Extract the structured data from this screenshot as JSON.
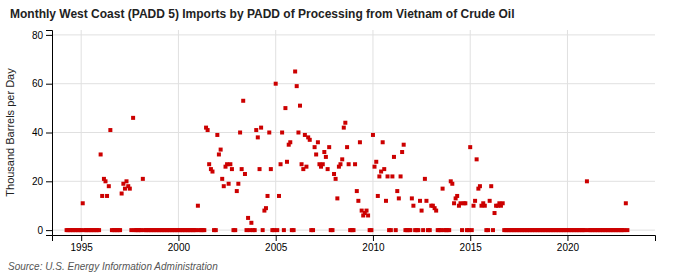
{
  "chart_data": {
    "type": "scatter",
    "title": "Monthly West Coast (PADD 5) Imports by PADD of Processing from Vietnam of Crude Oil",
    "y_label": "Thousand Barrels per Day",
    "annotations": [
      "Source: U.S. Energy Information Administration"
    ],
    "color": "#cc0000",
    "marker": "square",
    "grid": true,
    "xlim": [
      1993.5,
      2024.5
    ],
    "ylim": [
      -2,
      82
    ],
    "xticks": [
      1995,
      2000,
      2005,
      2010,
      2015,
      2020
    ],
    "yticks": [
      0,
      20,
      40,
      60,
      80
    ],
    "x": [
      1994.25,
      1994.33,
      1994.42,
      1994.5,
      1994.58,
      1994.67,
      1994.75,
      1994.83,
      1994.92,
      1995.0,
      1995.08,
      1995.17,
      1995.25,
      1995.33,
      1995.42,
      1995.5,
      1995.58,
      1995.67,
      1995.75,
      1995.83,
      1995.92,
      1996.0,
      1996.08,
      1996.17,
      1996.25,
      1996.33,
      1996.42,
      1996.5,
      1996.58,
      1996.67,
      1996.75,
      1996.83,
      1996.92,
      1997.0,
      1997.08,
      1997.17,
      1997.25,
      1997.33,
      1997.42,
      1997.5,
      1997.58,
      1997.67,
      1997.75,
      1997.83,
      1997.92,
      1998.0,
      1998.08,
      1998.17,
      1998.25,
      1998.33,
      1998.42,
      1998.5,
      1998.58,
      1998.67,
      1998.75,
      1998.83,
      1998.92,
      1999.0,
      1999.08,
      1999.17,
      1999.25,
      1999.33,
      1999.42,
      1999.5,
      1999.58,
      1999.67,
      1999.75,
      1999.83,
      1999.92,
      2000.0,
      2000.08,
      2000.17,
      2000.25,
      2000.33,
      2000.42,
      2000.5,
      2000.58,
      2000.67,
      2000.75,
      2000.83,
      2000.92,
      2001.0,
      2001.08,
      2001.17,
      2001.25,
      2001.33,
      2001.42,
      2001.5,
      2001.58,
      2001.67,
      2001.75,
      2001.83,
      2001.92,
      2002.0,
      2002.08,
      2002.17,
      2002.25,
      2002.33,
      2002.42,
      2002.5,
      2002.58,
      2002.67,
      2002.75,
      2002.83,
      2002.92,
      2003.0,
      2003.08,
      2003.17,
      2003.25,
      2003.33,
      2003.42,
      2003.5,
      2003.58,
      2003.67,
      2003.75,
      2003.83,
      2003.92,
      2004.0,
      2004.08,
      2004.17,
      2004.25,
      2004.33,
      2004.42,
      2004.5,
      2004.58,
      2004.67,
      2004.75,
      2004.83,
      2004.92,
      2005.0,
      2005.08,
      2005.17,
      2005.25,
      2005.33,
      2005.42,
      2005.5,
      2005.58,
      2005.67,
      2005.75,
      2005.83,
      2005.92,
      2006.0,
      2006.08,
      2006.17,
      2006.25,
      2006.33,
      2006.42,
      2006.5,
      2006.58,
      2006.67,
      2006.75,
      2006.83,
      2006.92,
      2007.0,
      2007.08,
      2007.17,
      2007.25,
      2007.33,
      2007.42,
      2007.5,
      2007.58,
      2007.67,
      2007.75,
      2007.83,
      2007.92,
      2008.0,
      2008.08,
      2008.17,
      2008.25,
      2008.33,
      2008.42,
      2008.5,
      2008.58,
      2008.67,
      2008.75,
      2008.83,
      2008.92,
      2009.0,
      2009.08,
      2009.17,
      2009.25,
      2009.33,
      2009.42,
      2009.5,
      2009.58,
      2009.67,
      2009.75,
      2009.83,
      2009.92,
      2010.0,
      2010.08,
      2010.17,
      2010.25,
      2010.33,
      2010.42,
      2010.5,
      2010.58,
      2010.67,
      2010.75,
      2010.83,
      2010.92,
      2011.0,
      2011.08,
      2011.17,
      2011.25,
      2011.33,
      2011.42,
      2011.5,
      2011.58,
      2011.67,
      2011.75,
      2011.83,
      2011.92,
      2012.0,
      2012.08,
      2012.17,
      2012.25,
      2012.33,
      2012.42,
      2012.5,
      2012.58,
      2012.67,
      2012.75,
      2012.83,
      2012.92,
      2013.0,
      2013.08,
      2013.17,
      2013.25,
      2013.33,
      2013.42,
      2013.5,
      2013.58,
      2013.67,
      2013.75,
      2013.83,
      2013.92,
      2014.0,
      2014.08,
      2014.17,
      2014.25,
      2014.33,
      2014.42,
      2014.5,
      2014.58,
      2014.67,
      2014.75,
      2014.83,
      2014.92,
      2015.0,
      2015.08,
      2015.17,
      2015.25,
      2015.33,
      2015.42,
      2015.5,
      2015.58,
      2015.67,
      2015.75,
      2015.83,
      2015.92,
      2016.0,
      2016.08,
      2016.17,
      2016.25,
      2016.33,
      2016.42,
      2016.5,
      2016.58,
      2016.67,
      2016.75,
      2016.83,
      2016.92,
      2017.0,
      2017.08,
      2017.17,
      2017.25,
      2017.33,
      2017.42,
      2017.5,
      2017.58,
      2017.67,
      2017.75,
      2017.83,
      2017.92,
      2018.0,
      2018.08,
      2018.17,
      2018.25,
      2018.33,
      2018.42,
      2018.5,
      2018.58,
      2018.67,
      2018.75,
      2018.83,
      2018.92,
      2019.0,
      2019.08,
      2019.17,
      2019.25,
      2019.33,
      2019.42,
      2019.5,
      2019.58,
      2019.67,
      2019.75,
      2019.83,
      2019.92,
      2020.0,
      2020.08,
      2020.17,
      2020.25,
      2020.33,
      2020.42,
      2020.5,
      2020.58,
      2020.67,
      2020.75,
      2020.83,
      2020.92,
      2021.0,
      2021.08,
      2021.17,
      2021.25,
      2021.33,
      2021.42,
      2021.5,
      2021.58,
      2021.67,
      2021.75,
      2021.83,
      2021.92,
      2022.0,
      2022.08,
      2022.17,
      2022.25,
      2022.33,
      2022.42,
      2022.5,
      2022.58,
      2022.67,
      2022.75,
      2022.83,
      2022.92,
      2023.0,
      2023.08
    ],
    "values": [
      0,
      0,
      0,
      0,
      0,
      0,
      0,
      0,
      0,
      0,
      11,
      0,
      0,
      0,
      0,
      0,
      0,
      0,
      0,
      0,
      0,
      31,
      14,
      21,
      20,
      14,
      18,
      41,
      0,
      0,
      0,
      0,
      0,
      0,
      15,
      19,
      17,
      20,
      18,
      17,
      0,
      46,
      0,
      0,
      0,
      0,
      0,
      21,
      0,
      0,
      0,
      0,
      0,
      0,
      0,
      0,
      0,
      0,
      0,
      0,
      0,
      0,
      0,
      0,
      0,
      0,
      0,
      0,
      0,
      0,
      0,
      0,
      0,
      0,
      0,
      0,
      0,
      0,
      0,
      0,
      0,
      10,
      0,
      0,
      0,
      0,
      42,
      41,
      27,
      25,
      24,
      0,
      0,
      39,
      31,
      33,
      21,
      18,
      26,
      27,
      19,
      27,
      25,
      0,
      0,
      16,
      19,
      40,
      25,
      53,
      23,
      0,
      5,
      0,
      3,
      0,
      0,
      41,
      38,
      25,
      42,
      0,
      8,
      9,
      14,
      40,
      25,
      0,
      0,
      60,
      0,
      14,
      27,
      40,
      0,
      50,
      28,
      35,
      36,
      0,
      0,
      65,
      59,
      40,
      51,
      27,
      25,
      39,
      26,
      38,
      37,
      0,
      0,
      34,
      31,
      36,
      27,
      26,
      27,
      32,
      30,
      25,
      34,
      0,
      0,
      23,
      21,
      13,
      26,
      27,
      29,
      42,
      44,
      34,
      27,
      0,
      0,
      0,
      27,
      16,
      12,
      36,
      8,
      6,
      7,
      8,
      6,
      0,
      0,
      39,
      26,
      28,
      14,
      22,
      24,
      36,
      25,
      12,
      22,
      0,
      0,
      22,
      30,
      0,
      16,
      13,
      22,
      32,
      35,
      0,
      0,
      0,
      0,
      13,
      10,
      0,
      0,
      0,
      12,
      8,
      0,
      21,
      12,
      0,
      0,
      10,
      10,
      9,
      8,
      0,
      0,
      0,
      17,
      0,
      0,
      0,
      0,
      20,
      19,
      11,
      13,
      14,
      10,
      11,
      0,
      11,
      11,
      0,
      0,
      34,
      0,
      10,
      12,
      29,
      17,
      18,
      10,
      11,
      10,
      0,
      0,
      12,
      18,
      0,
      7,
      10,
      10,
      11,
      10,
      11,
      0,
      0,
      0,
      0,
      0,
      0,
      0,
      0,
      0,
      0,
      0,
      0,
      0,
      0,
      0,
      0,
      0,
      0,
      0,
      0,
      0,
      0,
      0,
      0,
      0,
      0,
      0,
      0,
      0,
      0,
      0,
      0,
      0,
      0,
      0,
      0,
      0,
      0,
      0,
      0,
      0,
      0,
      0,
      0,
      0,
      0,
      0,
      0,
      0,
      0,
      0,
      20,
      0,
      0,
      0,
      0,
      0,
      0,
      0,
      0,
      0,
      0,
      0,
      0,
      0,
      0,
      0,
      0,
      0,
      0,
      0,
      0,
      0,
      0,
      0,
      11,
      0
    ]
  }
}
